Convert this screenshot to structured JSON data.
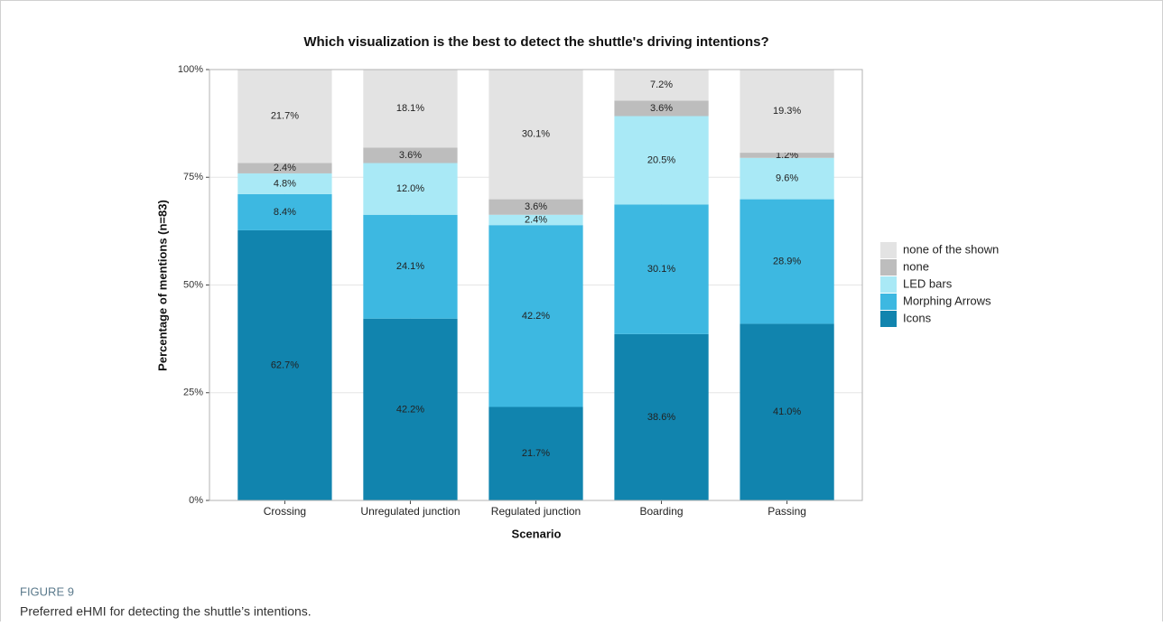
{
  "chart_data": {
    "type": "stacked_bar",
    "title": "Which visualization is the best to detect the shuttle's driving intentions?",
    "x_label": "Scenario",
    "y_label": "Percentage of mentions (n=83)",
    "categories": [
      "Crossing",
      "Unregulated junction",
      "Regulated junction",
      "Boarding",
      "Passing"
    ],
    "series": [
      {
        "name": "Icons",
        "color": "#1184ae",
        "values": [
          62.7,
          42.2,
          21.7,
          38.6,
          41.0
        ],
        "value_labels": [
          "62.7%",
          "42.2%",
          "21.7%",
          "38.6%",
          "41.0%"
        ]
      },
      {
        "name": "Morphing Arrows",
        "color": "#3db8e1",
        "values": [
          8.4,
          24.1,
          42.2,
          30.1,
          28.9
        ],
        "value_labels": [
          "8.4%",
          "24.1%",
          "42.2%",
          "30.1%",
          "28.9%"
        ]
      },
      {
        "name": "LED bars",
        "color": "#a9e9f6",
        "values": [
          4.8,
          12.0,
          2.4,
          20.5,
          9.6
        ],
        "value_labels": [
          "4.8%",
          "12.0%",
          "2.4%",
          "20.5%",
          "9.6%"
        ]
      },
      {
        "name": "none",
        "color": "#bdbdbd",
        "values": [
          2.4,
          3.6,
          3.6,
          3.6,
          1.2
        ],
        "value_labels": [
          "2.4%",
          "3.6%",
          "3.6%",
          "3.6%",
          "1.2%"
        ]
      },
      {
        "name": "none of the shown",
        "color": "#e3e3e3",
        "values": [
          21.7,
          18.1,
          30.1,
          7.2,
          19.3
        ],
        "value_labels": [
          "21.7%",
          "18.1%",
          "30.1%",
          "7.2%",
          "19.3%"
        ]
      }
    ],
    "ylim": [
      0,
      100
    ],
    "yticks": [
      {
        "value": 0,
        "label": "0%"
      },
      {
        "value": 25,
        "label": "25%"
      },
      {
        "value": 50,
        "label": "50%"
      },
      {
        "value": 75,
        "label": "75%"
      },
      {
        "value": 100,
        "label": "100%"
      }
    ],
    "grid": true,
    "legend": "right"
  },
  "figure": {
    "label": "FIGURE 9",
    "caption": "Preferred eHMI for detecting the shuttle’s intentions."
  }
}
